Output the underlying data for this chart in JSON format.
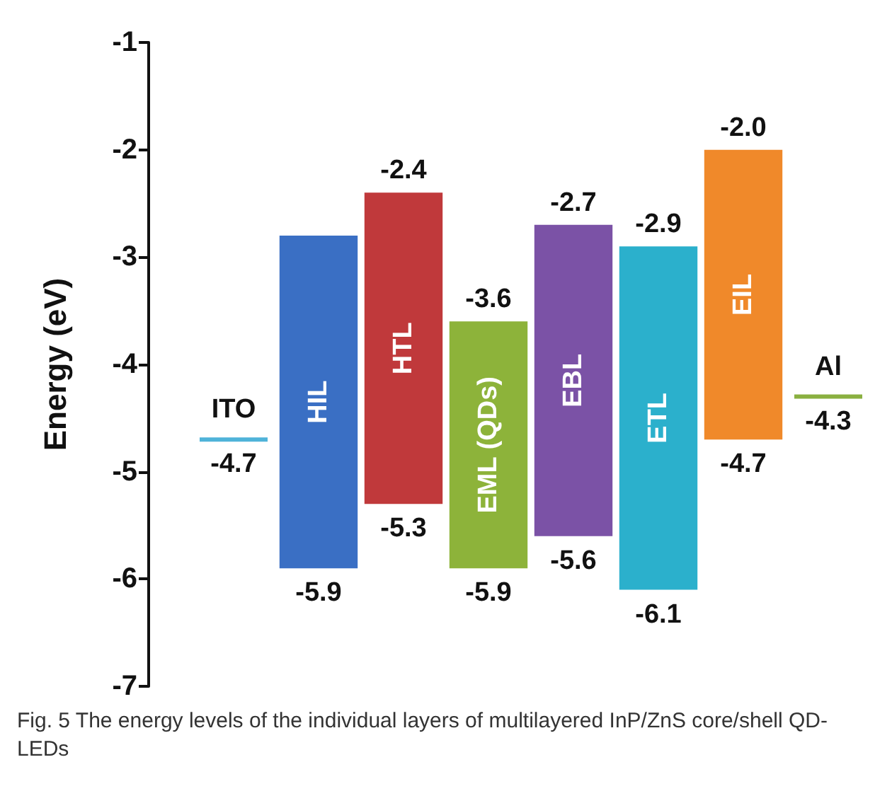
{
  "chart_data": {
    "type": "bar",
    "ylabel": "Energy (eV)",
    "categories": [
      "ITO",
      "HIL",
      "HTL",
      "EML (QDs)",
      "EBL",
      "ETL",
      "EIL",
      "Al"
    ],
    "series": [
      {
        "values": [
          0,
          3.1,
          2.9,
          2.3,
          2.9,
          3.2,
          2.7,
          0
        ],
        "base": [
          -4.7,
          -5.9,
          -5.3,
          -5.9,
          -5.6,
          -6.1,
          -4.7,
          -4.3
        ],
        "colors": [
          "#4fb3d9",
          "#3a6fc4",
          "#c0393b",
          "#8db33a",
          "#7b52a6",
          "#2bb0cc",
          "#f0892a",
          "#8ab040"
        ]
      }
    ],
    "ylim": [
      -7,
      -1
    ],
    "yticks": [
      -7,
      -6,
      -5,
      -4,
      -3,
      -2,
      -1
    ],
    "grid": false,
    "annotations": [
      {
        "text": "-4.7",
        "x": "ITO",
        "y": -4.7
      },
      {
        "text": "-5.9",
        "x": "HIL",
        "y": -5.9
      },
      {
        "text": "-2.4",
        "x": "HTL",
        "y": -2.4
      },
      {
        "text": "-5.3",
        "x": "HTL",
        "y": -5.3
      },
      {
        "text": "-3.6",
        "x": "EML (QDs)",
        "y": -3.6
      },
      {
        "text": "-5.9",
        "x": "EML (QDs)",
        "y": -5.9
      },
      {
        "text": "-2.7",
        "x": "EBL",
        "y": -2.7
      },
      {
        "text": "-5.6",
        "x": "EBL",
        "y": -5.6
      },
      {
        "text": "-2.9",
        "x": "ETL",
        "y": -2.9
      },
      {
        "text": "-6.1",
        "x": "ETL",
        "y": -6.1
      },
      {
        "text": "-2.0",
        "x": "EIL",
        "y": -2.0
      },
      {
        "text": "-4.7",
        "x": "EIL",
        "y": -4.7
      },
      {
        "text": "-4.3",
        "x": "Al",
        "y": -4.3
      },
      "Fig. 5 The energy levels of the individual layers of multilayered InP/ZnS core/shell QD-LEDs"
    ]
  }
}
